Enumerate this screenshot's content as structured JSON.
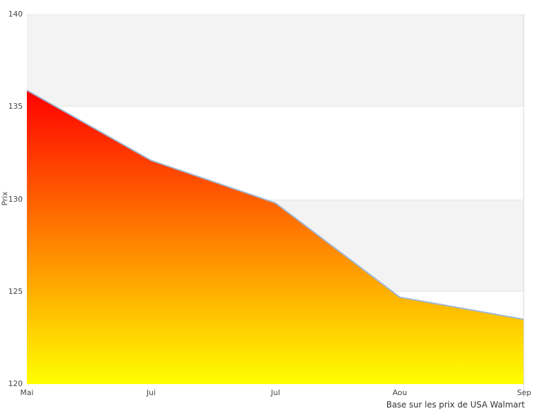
{
  "chart_data": {
    "type": "area",
    "categories": [
      "Mai",
      "Jui",
      "Jul",
      "Aou",
      "Sep"
    ],
    "values": [
      135.9,
      132.1,
      129.8,
      124.7,
      123.5
    ],
    "title": "",
    "xlabel": "",
    "ylabel": "Prix",
    "ylim": [
      120,
      140
    ],
    "yticks": [
      140,
      135,
      130,
      125,
      120
    ],
    "caption": "Base sur les prix de USA Walmart",
    "grid": "alternate-bands",
    "legend_position": "none",
    "bands": [
      {
        "from": 135,
        "to": 140
      },
      {
        "from": 125,
        "to": 130
      }
    ],
    "colors": {
      "area_gradient_top": "#ff0000",
      "area_gradient_bottom": "#ffff00",
      "line": "#9fb8d4",
      "band_fill": "#f3f3f3",
      "band_edge": "#e7e7e7",
      "axis_border": "#d9d9d9",
      "tick_text": "#444444",
      "caption_text": "#333333"
    }
  }
}
